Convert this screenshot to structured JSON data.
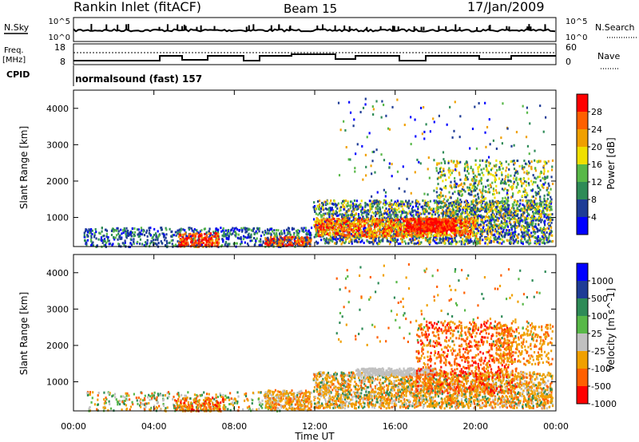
{
  "header": {
    "station": "Rankin Inlet (fitACF)",
    "beam": "Beam 15",
    "date": "17/Jan/2009"
  },
  "status_panels": {
    "nsky_label": "N.Sky",
    "nsky_ticks": [
      "10^5",
      "10^0"
    ],
    "nsearch_label": "N.Search",
    "nsearch_ticks": [
      "10^5",
      "10^0"
    ],
    "freq_label": "Freq.",
    "freq_unit": "[MHz]",
    "freq_ticks": [
      "18",
      "8"
    ],
    "nave_label": "Nave",
    "nave_ticks": [
      "60",
      "0"
    ],
    "cpid_label": "CPID",
    "cpid_text": "normalsound (fast) 157"
  },
  "axes": {
    "xlabel": "Time UT",
    "ylabel": "Slant Range [km]",
    "xticks": [
      "00:00",
      "04:00",
      "08:00",
      "12:00",
      "16:00",
      "20:00",
      "00:00"
    ],
    "yticks": [
      "1000",
      "2000",
      "3000",
      "4000"
    ]
  },
  "colors": {
    "power": [
      "#0000ff",
      "#1e3c96",
      "#2e8b57",
      "#58b848",
      "#f0e000",
      "#f0a000",
      "#ff6000",
      "#ff0000"
    ],
    "velocity": [
      "#0000ff",
      "#1e3c96",
      "#2e8b57",
      "#58b848",
      "#c0c0c0",
      "#f0a000",
      "#ff6000",
      "#ff0000"
    ]
  },
  "chart_data": [
    {
      "type": "heatmap",
      "name": "power",
      "xlabel": "Time UT",
      "ylabel": "Slant Range [km]",
      "xlim": [
        0,
        24
      ],
      "ylim": [
        200,
        4500
      ],
      "colorbar_label": "Power [dB]",
      "colorbar_ticks": [
        "4",
        "8",
        "12",
        "16",
        "20",
        "24",
        "28"
      ],
      "colorbar_range": [
        0,
        32
      ]
    },
    {
      "type": "heatmap",
      "name": "velocity",
      "xlabel": "Time UT",
      "ylabel": "Slant Range [km]",
      "xlim": [
        0,
        24
      ],
      "ylim": [
        200,
        4500
      ],
      "colorbar_label": "Velocity [m s^-1]",
      "colorbar_ticks": [
        "1000",
        "500",
        "100",
        "25",
        "-25",
        "-100",
        "-500",
        "-1000"
      ]
    }
  ]
}
